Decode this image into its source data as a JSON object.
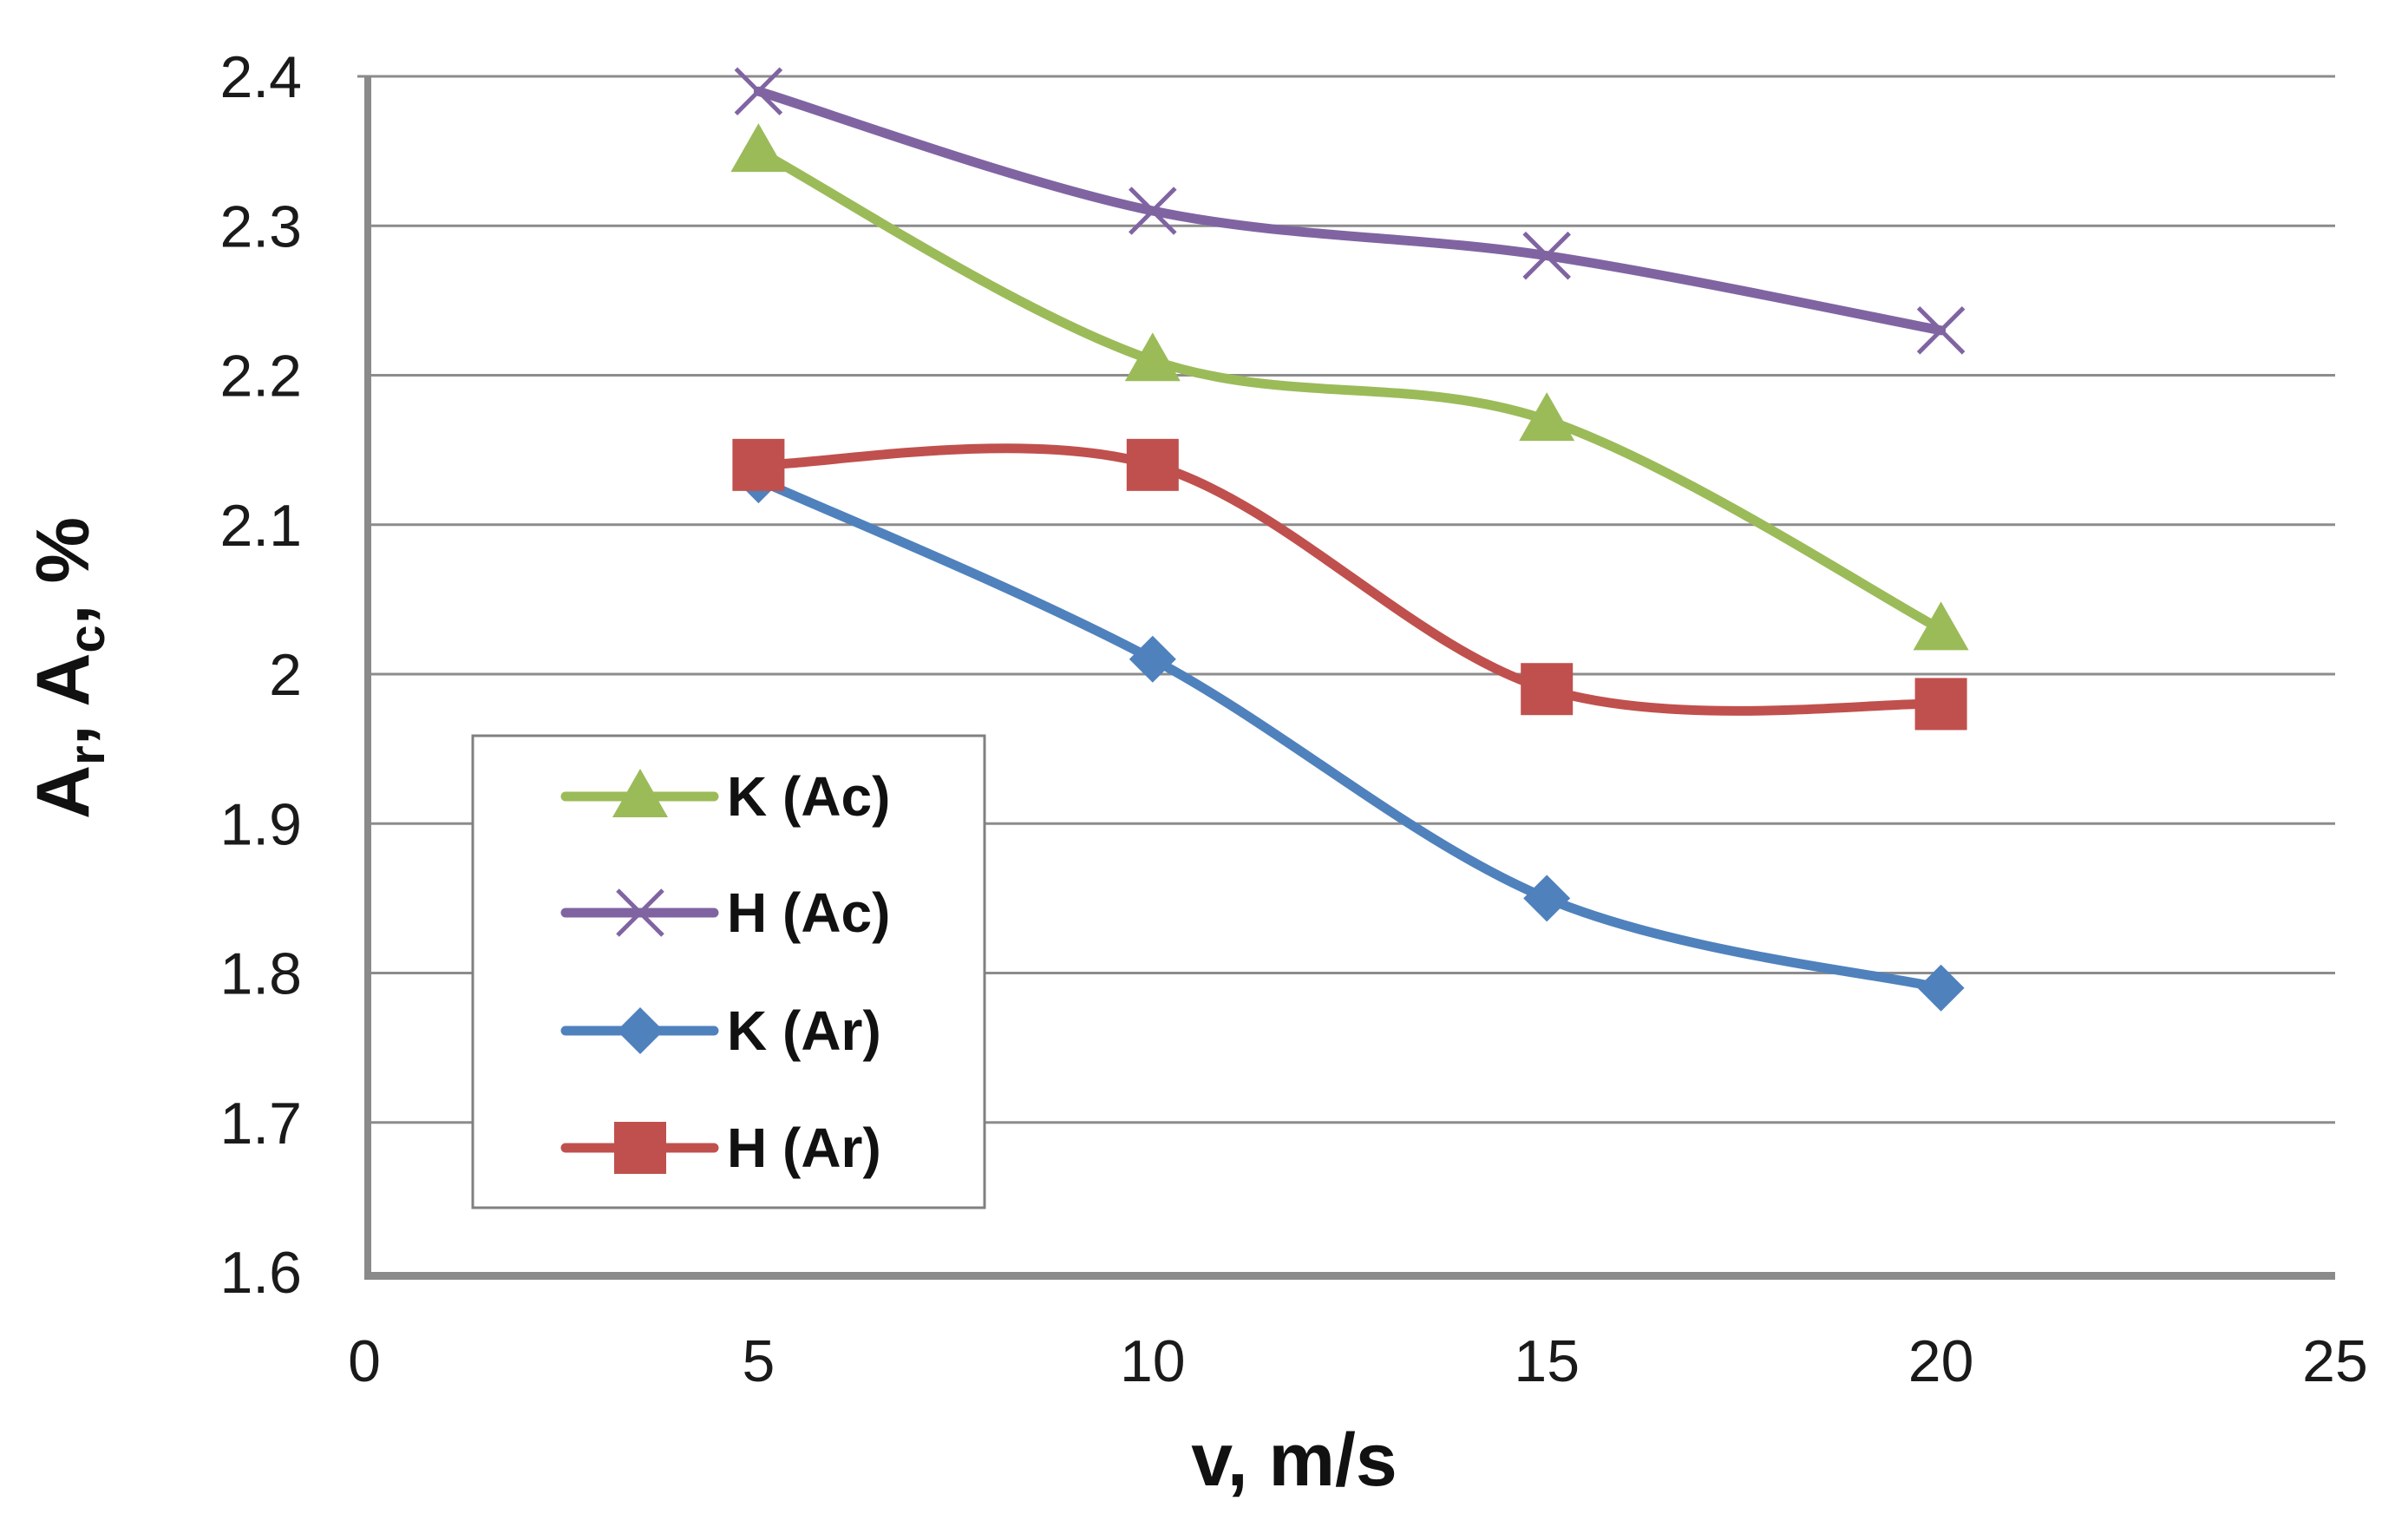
{
  "chart_data": {
    "type": "line",
    "title": "",
    "xlabel": "v, m/s",
    "ylabel_parts": [
      "A",
      "r",
      ", A",
      "c",
      ", %"
    ],
    "xlim": [
      0,
      25
    ],
    "ylim": [
      1.6,
      2.4
    ],
    "xticks": [
      0,
      5,
      10,
      15,
      20,
      25
    ],
    "xtick_labels": [
      "0",
      "5",
      "10",
      "15",
      "20",
      "25"
    ],
    "yticks": [
      1.6,
      1.7,
      1.8,
      1.9,
      2.0,
      2.1,
      2.2,
      2.3,
      2.4
    ],
    "ytick_labels": [
      "1.6",
      "1.7",
      "1.8",
      "1.9",
      "2",
      "2.1",
      "2.2",
      "2.3",
      "2.4"
    ],
    "grid": true,
    "smooth": true,
    "legend_position": "lower-left",
    "x": [
      5,
      10,
      15,
      20
    ],
    "series": [
      {
        "name": "K (Ac)",
        "values": [
          2.35,
          2.21,
          2.17,
          2.03
        ],
        "color": "#9BBB59",
        "marker": "triangle"
      },
      {
        "name": "H (Ac)",
        "values": [
          2.39,
          2.31,
          2.28,
          2.23
        ],
        "color": "#8064A2",
        "marker": "x"
      },
      {
        "name": "K (Ar)",
        "values": [
          2.13,
          2.01,
          1.85,
          1.79
        ],
        "color": "#4F81BD",
        "marker": "diamond"
      },
      {
        "name": "H (Ar)",
        "values": [
          2.14,
          2.14,
          1.99,
          1.98
        ],
        "color": "#C0504D",
        "marker": "square"
      }
    ]
  }
}
